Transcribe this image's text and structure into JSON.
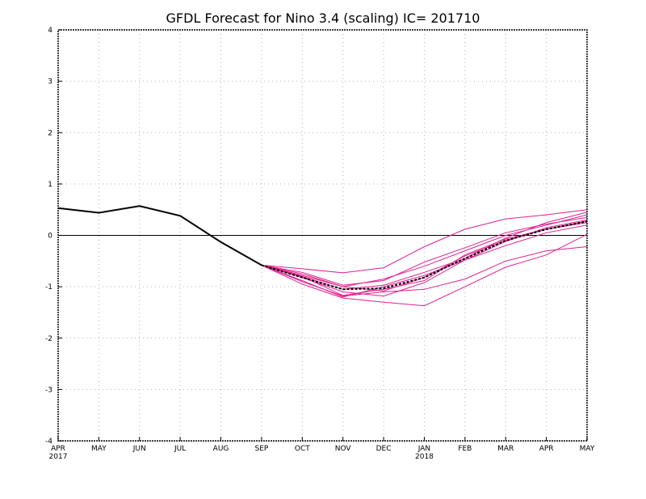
{
  "chart_data": {
    "type": "line",
    "title": "GFDL Forecast for Nino 3.4 (scaling) IC= 201710",
    "x_ticks": [
      {
        "label": "APR",
        "sub": "2017"
      },
      {
        "label": "MAY",
        "sub": ""
      },
      {
        "label": "JUN",
        "sub": ""
      },
      {
        "label": "JUL",
        "sub": ""
      },
      {
        "label": "AUG",
        "sub": ""
      },
      {
        "label": "SEP",
        "sub": ""
      },
      {
        "label": "OCT",
        "sub": ""
      },
      {
        "label": "NOV",
        "sub": ""
      },
      {
        "label": "DEC",
        "sub": ""
      },
      {
        "label": "JAN",
        "sub": "2018"
      },
      {
        "label": "FEB",
        "sub": ""
      },
      {
        "label": "MAR",
        "sub": ""
      },
      {
        "label": "APR",
        "sub": ""
      },
      {
        "label": "MAY",
        "sub": ""
      }
    ],
    "y_ticks": [
      "-4",
      "-3",
      "-2",
      "-1",
      "0",
      "1",
      "2",
      "3",
      "4"
    ],
    "ylim": [
      -4,
      4
    ],
    "grid": true,
    "zero_line": true,
    "colors": {
      "observed": "#000000",
      "ensemble": "#e0208f",
      "ensemble_mean": "#000000"
    },
    "observed": {
      "x_start_index": 0,
      "values": [
        0.53,
        0.44,
        0.57,
        0.38,
        -0.13,
        -0.58
      ]
    },
    "ensemble_members": {
      "x_start_index": 5,
      "series": [
        [
          -0.58,
          -0.65,
          -0.73,
          -0.63,
          -0.22,
          0.12,
          0.32,
          0.4,
          0.5
        ],
        [
          -0.58,
          -0.72,
          -0.97,
          -0.88,
          -0.52,
          -0.24,
          0.05,
          0.22,
          0.35
        ],
        [
          -0.58,
          -0.8,
          -1.05,
          -0.97,
          -0.72,
          -0.45,
          -0.05,
          0.25,
          0.45
        ],
        [
          -0.58,
          -0.78,
          -1.0,
          -1.08,
          -0.82,
          -0.4,
          -0.1,
          0.12,
          0.28
        ],
        [
          -0.58,
          -0.8,
          -1.17,
          -1.05,
          -0.88,
          -0.38,
          -0.07,
          0.12,
          0.25
        ],
        [
          -0.58,
          -0.82,
          -1.1,
          -1.18,
          -0.92,
          -0.48,
          -0.12,
          0.15,
          0.3
        ],
        [
          -0.58,
          -0.88,
          -1.2,
          -1.0,
          -0.78,
          -0.48,
          -0.2,
          0.05,
          0.2
        ],
        [
          -0.58,
          -0.9,
          -1.18,
          -1.1,
          -1.05,
          -0.85,
          -0.5,
          -0.3,
          -0.22
        ],
        [
          -0.58,
          -0.95,
          -1.22,
          -1.3,
          -1.37,
          -1.0,
          -0.62,
          -0.38,
          0.02
        ],
        [
          -0.58,
          -0.75,
          -1.0,
          -0.85,
          -0.6,
          -0.3,
          0.0,
          0.2,
          0.4
        ]
      ]
    },
    "ensemble_mean": {
      "x_start_index": 5,
      "values": [
        -0.58,
        -0.82,
        -1.05,
        -1.03,
        -0.82,
        -0.45,
        -0.1,
        0.12,
        0.27
      ]
    }
  }
}
